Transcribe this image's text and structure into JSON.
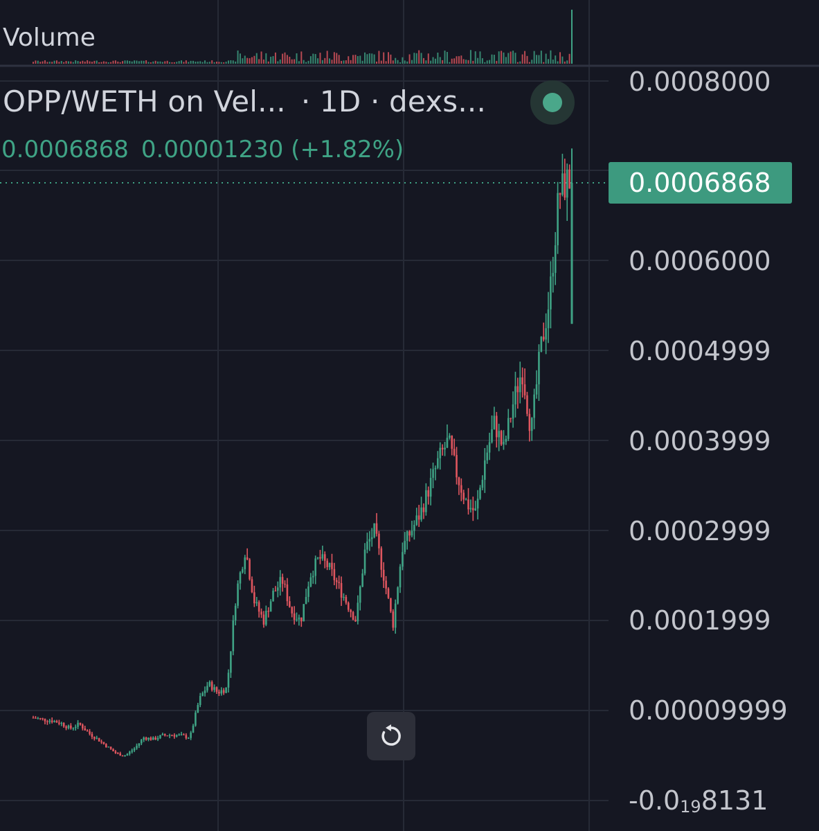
{
  "header": {
    "volume_label": "Volume",
    "symbol_title": "OPP/WETH on Vel...",
    "interval_source": "· 1D · dexs...",
    "last_price": "0.0006868",
    "change": "0.00001230 (+1.82%)",
    "status": "live"
  },
  "price_axis": {
    "labels": [
      "0.0008000",
      "0.0006000",
      "0.0004999",
      "0.0003999",
      "0.0002999",
      "0.0001999",
      "0.00009999"
    ],
    "bottom_label_prefix": "-0.0",
    "bottom_label_subscript": "19",
    "bottom_label_suffix": "8131",
    "last_price_tag": "0.0006868"
  },
  "controls": {
    "reset_icon": "reset-rotate-icon"
  },
  "colors": {
    "background": "#151722",
    "up": "#3fa385",
    "down": "#e0565f",
    "grid": "#262a36",
    "tag": "#3d9a7f"
  },
  "chart_data": {
    "type": "line",
    "title": "OPP/WETH on Vel...",
    "xlabel": "",
    "ylabel": "",
    "ylim": [
      -1e-05,
      0.00082
    ],
    "y_ticks": [
      9.999e-05,
      0.0001999,
      0.0002999,
      0.0003999,
      0.0004999,
      0.0006,
      0.0008
    ],
    "last_price": 0.0006868,
    "grid": true,
    "x": [
      0,
      5,
      10,
      15,
      20,
      25,
      30,
      35,
      40,
      45,
      50,
      55,
      60,
      65,
      70,
      75,
      80,
      85,
      90,
      95,
      100,
      105,
      110,
      115,
      120,
      125,
      130,
      135,
      140,
      145,
      150,
      155,
      160,
      165,
      170,
      175,
      180,
      185,
      190,
      195,
      200,
      205,
      210,
      215,
      220,
      225,
      230,
      235,
      240,
      245,
      250,
      255,
      260,
      265,
      270,
      275,
      280,
      285,
      290,
      292
    ],
    "series": [
      {
        "values": [
          9.2e-05,
          9e-05,
          8.9e-05,
          8.6e-05,
          8e-05,
          8.5e-05,
          7.5e-05,
          6.8e-05,
          6e-05,
          5.2e-05,
          5e-05,
          5.8e-05,
          7e-05,
          6.8e-05,
          7.2e-05,
          7.3e-05,
          7.2e-05,
          7e-05,
          0.000112,
          0.00013,
          0.00012,
          0.000125,
          0.00023,
          0.00028,
          0.00022,
          0.0002,
          0.00023,
          0.000245,
          0.00021,
          0.0002,
          0.00025,
          0.00027,
          0.00026,
          0.00024,
          0.00022,
          0.0002,
          0.00028,
          0.0003,
          0.00025,
          0.000195,
          0.00028,
          0.0003,
          0.00032,
          0.00035,
          0.00038,
          0.0004,
          0.00036,
          0.00033,
          0.00032,
          0.00038,
          0.00042,
          0.00039,
          0.00044,
          0.00048,
          0.00041,
          0.0005,
          0.00056,
          0.000675,
          0.00069,
          0.0006868
        ]
      }
    ]
  }
}
